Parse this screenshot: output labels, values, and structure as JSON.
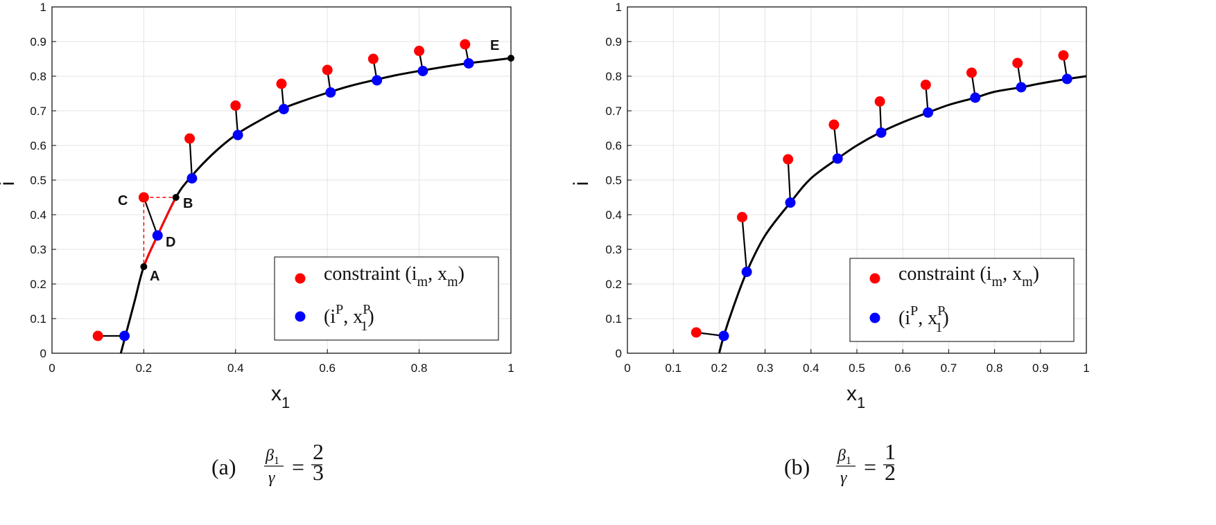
{
  "chart_data": [
    {
      "id": "a",
      "type": "line",
      "xlabel": "x",
      "xlabel_sub": "1",
      "ylabel": "i",
      "xlim": [
        0,
        1
      ],
      "ylim": [
        0,
        1
      ],
      "xticks": [
        "0",
        "0.2",
        "0.4",
        "0.6",
        "0.8",
        "1"
      ],
      "xtick_values": [
        0,
        0.2,
        0.4,
        0.6,
        0.8,
        1
      ],
      "yticks": [
        "0",
        "0.1",
        "0.2",
        "0.3",
        "0.4",
        "0.5",
        "0.6",
        "0.7",
        "0.8",
        "0.9",
        "1"
      ],
      "ytick_values": [
        0,
        0.1,
        0.2,
        0.3,
        0.4,
        0.5,
        0.6,
        0.7,
        0.8,
        0.9,
        1
      ],
      "grid": true,
      "curve": {
        "x": [
          0.15,
          0.16,
          0.18,
          0.2,
          0.23,
          0.27,
          0.3,
          0.35,
          0.4,
          0.45,
          0.5,
          0.55,
          0.6,
          0.65,
          0.7,
          0.75,
          0.8,
          0.85,
          0.9,
          0.95,
          1.0
        ],
        "y": [
          0.0,
          0.05,
          0.15,
          0.25,
          0.34,
          0.45,
          0.505,
          0.575,
          0.63,
          0.67,
          0.705,
          0.73,
          0.752,
          0.772,
          0.788,
          0.803,
          0.815,
          0.826,
          0.836,
          0.844,
          0.852
        ]
      },
      "highlight_segment": {
        "x": [
          0.2,
          0.21,
          0.23,
          0.25,
          0.27
        ],
        "y": [
          0.25,
          0.283,
          0.34,
          0.397,
          0.45
        ]
      },
      "constraints": {
        "label": "constraint (i",
        "label_sub1": "m",
        "label_mid": ", x",
        "label_sub2": "m",
        "label_end": ")",
        "x": [
          0.1,
          0.2,
          0.3,
          0.4,
          0.5,
          0.6,
          0.7,
          0.8,
          0.9
        ],
        "y": [
          0.05,
          0.45,
          0.62,
          0.715,
          0.778,
          0.818,
          0.85,
          0.873,
          0.892
        ]
      },
      "projections": {
        "label_open": "(i",
        "label_sup1": "P",
        "label_mid": ", x",
        "label_sup2": "P",
        "label_sub2": "1",
        "label_end": ")",
        "x": [
          0.158,
          0.23,
          0.305,
          0.405,
          0.505,
          0.607,
          0.708,
          0.808,
          0.908
        ],
        "y": [
          0.05,
          0.34,
          0.505,
          0.63,
          0.705,
          0.753,
          0.788,
          0.815,
          0.837
        ]
      },
      "points": [
        {
          "name": "A",
          "x": 0.2,
          "y": 0.25
        },
        {
          "name": "B",
          "x": 0.27,
          "y": 0.45
        },
        {
          "name": "C",
          "x": 0.2,
          "y": 0.45
        },
        {
          "name": "D",
          "x": 0.23,
          "y": 0.34
        },
        {
          "name": "E",
          "x": 1.0,
          "y": 0.852
        }
      ],
      "caption": {
        "prefix": "(a)",
        "num": "β",
        "num_sub": "1",
        "den": "γ",
        "eq": "=",
        "frac_num": "2",
        "frac_den": "3"
      },
      "colors": {
        "constraint": "#ff0000",
        "projection": "#0000ff",
        "curve": "#000000",
        "highlight": "#ff0000"
      }
    },
    {
      "id": "b",
      "type": "line",
      "xlabel": "x",
      "xlabel_sub": "1",
      "ylabel": "i",
      "xlim": [
        0,
        1
      ],
      "ylim": [
        0,
        1
      ],
      "xticks": [
        "0",
        "0.1",
        "0.2",
        "0.3",
        "0.4",
        "0.5",
        "0.6",
        "0.7",
        "0.8",
        "0.9",
        "1"
      ],
      "xtick_values": [
        0,
        0.1,
        0.2,
        0.3,
        0.4,
        0.5,
        0.6,
        0.7,
        0.8,
        0.9,
        1
      ],
      "yticks": [
        "0",
        "0.1",
        "0.2",
        "0.3",
        "0.4",
        "0.5",
        "0.6",
        "0.7",
        "0.8",
        "0.9",
        "1"
      ],
      "ytick_values": [
        0,
        0.1,
        0.2,
        0.3,
        0.4,
        0.5,
        0.6,
        0.7,
        0.8,
        0.9,
        1
      ],
      "grid": true,
      "curve": {
        "x": [
          0.2,
          0.21,
          0.23,
          0.26,
          0.3,
          0.355,
          0.4,
          0.458,
          0.5,
          0.55,
          0.6,
          0.655,
          0.7,
          0.758,
          0.8,
          0.858,
          0.9,
          0.958,
          1.0
        ],
        "y": [
          0.0,
          0.05,
          0.13,
          0.235,
          0.34,
          0.435,
          0.505,
          0.562,
          0.6,
          0.637,
          0.667,
          0.695,
          0.717,
          0.738,
          0.755,
          0.768,
          0.779,
          0.792,
          0.8
        ]
      },
      "constraints": {
        "label": "constraint (i",
        "label_sub1": "m",
        "label_mid": ", x",
        "label_sub2": "m",
        "label_end": ")",
        "x": [
          0.15,
          0.25,
          0.35,
          0.45,
          0.55,
          0.65,
          0.75,
          0.85,
          0.95
        ],
        "y": [
          0.06,
          0.393,
          0.56,
          0.66,
          0.727,
          0.775,
          0.81,
          0.838,
          0.86
        ]
      },
      "projections": {
        "label_open": "(i",
        "label_sup1": "P",
        "label_mid": ", x",
        "label_sup2": "P",
        "label_sub2": "1",
        "label_end": ")",
        "x": [
          0.21,
          0.26,
          0.355,
          0.458,
          0.553,
          0.655,
          0.758,
          0.858,
          0.958
        ],
        "y": [
          0.05,
          0.235,
          0.435,
          0.562,
          0.637,
          0.695,
          0.738,
          0.768,
          0.792
        ]
      },
      "caption": {
        "prefix": "(b)",
        "num": "β",
        "num_sub": "1",
        "den": "γ",
        "eq": "=",
        "frac_num": "1",
        "frac_den": "2"
      },
      "colors": {
        "constraint": "#ff0000",
        "projection": "#0000ff",
        "curve": "#000000"
      }
    }
  ]
}
